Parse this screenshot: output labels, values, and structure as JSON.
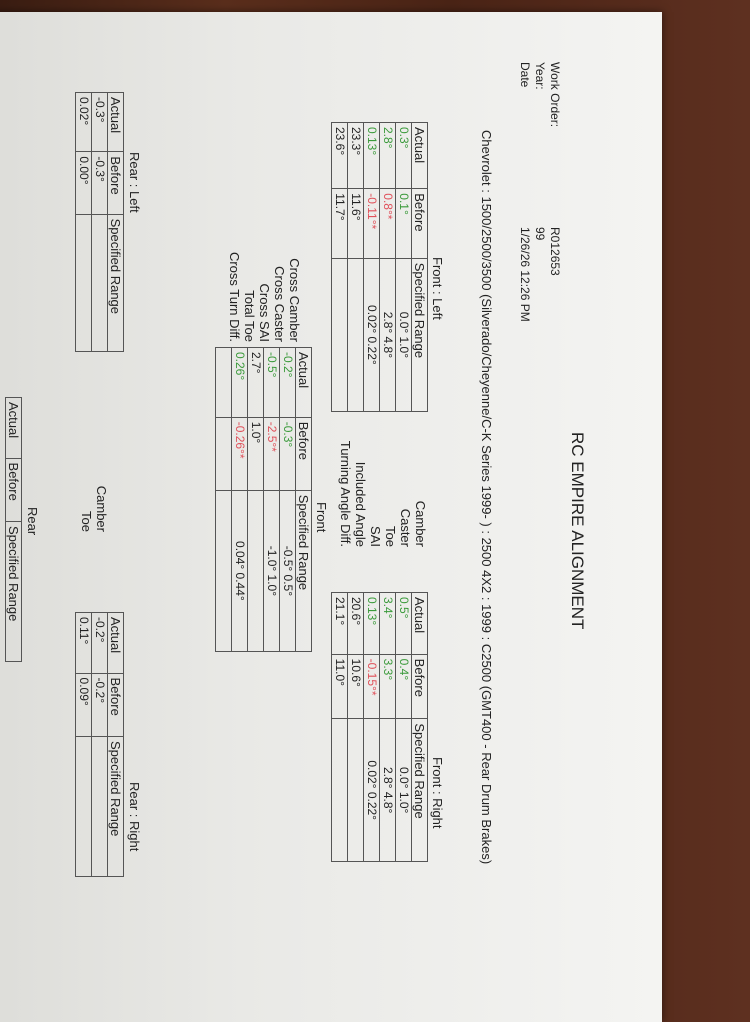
{
  "title": "RC EMPIRE ALIGNMENT",
  "header": {
    "work_order_label": "Work Order:",
    "work_order": "R012653",
    "year_label": "Year:",
    "year": "99",
    "date_label": "Date",
    "date": "1/26/26 12:26 PM"
  },
  "vehicle": "Chevrolet : 1500/2500/3500 (Silverado/Cheyenne/C-K Series 1999- ) : 2500 4X2 : 1999 : C2500 (GMT400 - Rear Drum Brakes)",
  "columns": [
    "Actual",
    "Before",
    "Specified Range"
  ],
  "front_left": {
    "label": "Front : Left",
    "rows": [
      {
        "actual": "0.3°",
        "before": "0.1°",
        "range": "0.0° 1.0°",
        "a": "g",
        "b": "g"
      },
      {
        "actual": "2.8°",
        "before": "0.8°*",
        "range": "2.8° 4.8°",
        "a": "g",
        "b": "red"
      },
      {
        "actual": "0.13°",
        "before": "-0.11°*",
        "range": "0.02° 0.22°",
        "a": "g",
        "b": "red"
      },
      {
        "actual": "23.3°",
        "before": "11.6°",
        "range": "",
        "a": "",
        "b": ""
      },
      {
        "actual": "23.6°",
        "before": "11.7°",
        "range": "",
        "a": "",
        "b": ""
      }
    ]
  },
  "front_labels": [
    "Camber",
    "Caster",
    "Toe",
    "SAI",
    "Included Angle",
    "Turning Angle Diff."
  ],
  "front_right": {
    "label": "Front : Right",
    "rows": [
      {
        "actual": "0.5°",
        "before": "0.4°",
        "range": "0.0° 1.0°",
        "a": "g",
        "b": "g"
      },
      {
        "actual": "3.4°",
        "before": "3.3°",
        "range": "2.8° 4.8°",
        "a": "g",
        "b": "g"
      },
      {
        "actual": "0.13°",
        "before": "-0.15°*",
        "range": "0.02° 0.22°",
        "a": "g",
        "b": "red"
      },
      {
        "actual": "20.6°",
        "before": "10.6°",
        "range": "",
        "a": "",
        "b": ""
      },
      {
        "actual": "21.1°",
        "before": "11.0°",
        "range": "",
        "a": "",
        "b": ""
      }
    ]
  },
  "front": {
    "label": "Front",
    "labels": [
      "Cross Camber",
      "Cross Caster",
      "Cross SAI",
      "Total Toe",
      "Cross Turn Diff."
    ],
    "rows": [
      {
        "actual": "-0.2°",
        "before": "-0.3°",
        "range": "-0.5° 0.5°",
        "a": "g",
        "b": "g"
      },
      {
        "actual": "-0.5°",
        "before": "-2.5°*",
        "range": "-1.0° 1.0°",
        "a": "g",
        "b": "red"
      },
      {
        "actual": "2.7°",
        "before": "1.0°",
        "range": "",
        "a": "",
        "b": ""
      },
      {
        "actual": "0.26°",
        "before": "-0.26°*",
        "range": "0.04° 0.44°",
        "a": "g",
        "b": "red"
      },
      {
        "actual": "",
        "before": "",
        "range": "",
        "a": "",
        "b": ""
      }
    ]
  },
  "rear_left": {
    "label": "Rear : Left",
    "rows": [
      {
        "actual": "-0.3°",
        "before": "-0.3°",
        "range": "",
        "a": "",
        "b": ""
      },
      {
        "actual": "0.02°",
        "before": "0.00°",
        "range": "",
        "a": "",
        "b": ""
      }
    ]
  },
  "rear_labels": [
    "Camber",
    "Toe"
  ],
  "rear_right": {
    "label": "Rear : Right",
    "rows": [
      {
        "actual": "-0.2°",
        "before": "-0.2°",
        "range": "",
        "a": "",
        "b": ""
      },
      {
        "actual": "0.11°",
        "before": "0.09°",
        "range": "",
        "a": "",
        "b": ""
      }
    ]
  },
  "rear": {
    "label": "Rear"
  },
  "colors": {
    "in_spec": "#3a9a3a",
    "out_of_spec": "#e0505a"
  }
}
